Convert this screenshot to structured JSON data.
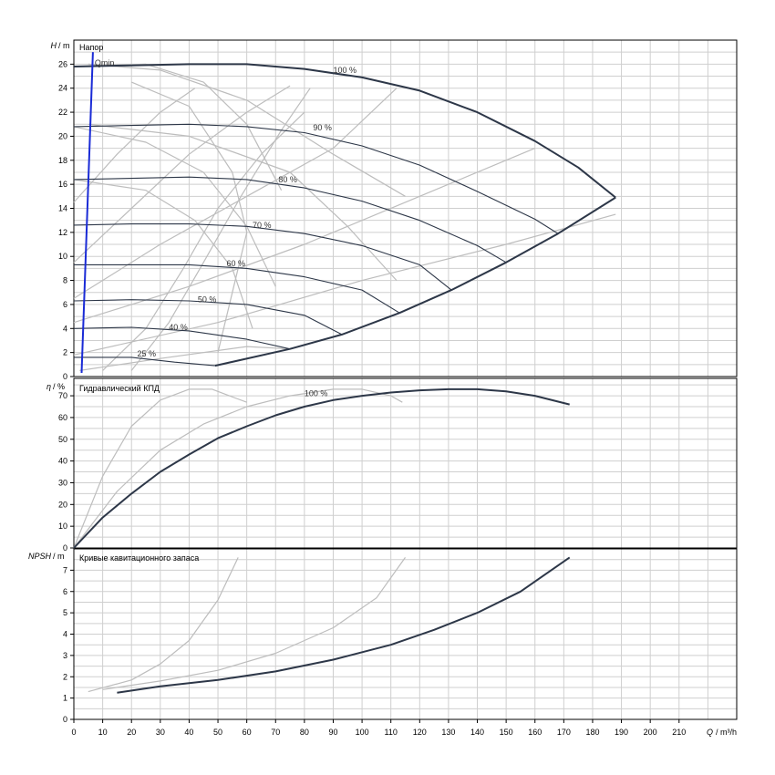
{
  "chart_data": [
    {
      "type": "line",
      "panel": "head",
      "title": "Напор",
      "ylabel_symbol": "H",
      "ylabel_unit": "/ m",
      "xlim": [
        0,
        230
      ],
      "ylim": [
        0,
        28
      ],
      "y_ticks": [
        0,
        2,
        4,
        6,
        8,
        10,
        12,
        14,
        16,
        18,
        20,
        22,
        24,
        26
      ],
      "colors": {
        "main": "#2d3748",
        "iso": "#2d3748",
        "grey": "#bdbdbd",
        "qmin": "#1a2bd6"
      },
      "qmin": {
        "label": "Qmin",
        "points": [
          [
            2.7,
            0.3
          ],
          [
            6.6,
            27
          ]
        ]
      },
      "speed_curves": [
        {
          "name": "100 %",
          "label_at": [
            90,
            25.5
          ],
          "points": [
            [
              0,
              25.8
            ],
            [
              20,
              25.9
            ],
            [
              40,
              26.0
            ],
            [
              60,
              26.0
            ],
            [
              80,
              25.6
            ],
            [
              100,
              24.9
            ],
            [
              120,
              23.8
            ],
            [
              140,
              22.0
            ],
            [
              160,
              19.6
            ],
            [
              175,
              17.4
            ],
            [
              188,
              14.9
            ]
          ]
        },
        {
          "name": "90 %",
          "label_at": [
            83,
            20.7
          ],
          "points": [
            [
              0,
              20.8
            ],
            [
              20,
              20.9
            ],
            [
              40,
              21.0
            ],
            [
              60,
              20.8
            ],
            [
              80,
              20.3
            ],
            [
              100,
              19.2
            ],
            [
              120,
              17.6
            ],
            [
              140,
              15.4
            ],
            [
              160,
              13.1
            ],
            [
              168,
              11.9
            ]
          ]
        },
        {
          "name": "80 %",
          "label_at": [
            71,
            16.4
          ],
          "points": [
            [
              0,
              16.4
            ],
            [
              20,
              16.5
            ],
            [
              40,
              16.6
            ],
            [
              60,
              16.4
            ],
            [
              80,
              15.7
            ],
            [
              100,
              14.6
            ],
            [
              120,
              13.0
            ],
            [
              140,
              10.9
            ],
            [
              150,
              9.5
            ]
          ]
        },
        {
          "name": "70 %",
          "label_at": [
            62,
            12.6
          ],
          "points": [
            [
              0,
              12.6
            ],
            [
              20,
              12.7
            ],
            [
              40,
              12.7
            ],
            [
              60,
              12.5
            ],
            [
              80,
              11.9
            ],
            [
              100,
              10.9
            ],
            [
              120,
              9.3
            ],
            [
              131,
              7.2
            ]
          ]
        },
        {
          "name": "60 %",
          "label_at": [
            53,
            9.4
          ],
          "points": [
            [
              0,
              9.3
            ],
            [
              20,
              9.3
            ],
            [
              40,
              9.3
            ],
            [
              60,
              9.0
            ],
            [
              80,
              8.3
            ],
            [
              100,
              7.2
            ],
            [
              113,
              5.3
            ]
          ]
        },
        {
          "name": "50 %",
          "label_at": [
            43,
            6.4
          ],
          "points": [
            [
              0,
              6.3
            ],
            [
              20,
              6.4
            ],
            [
              40,
              6.3
            ],
            [
              60,
              6.0
            ],
            [
              80,
              5.1
            ],
            [
              93,
              3.5
            ]
          ]
        },
        {
          "name": "40 %",
          "label_at": [
            33,
            4.1
          ],
          "points": [
            [
              0,
              4.0
            ],
            [
              20,
              4.1
            ],
            [
              40,
              3.8
            ],
            [
              60,
              3.1
            ],
            [
              75,
              2.3
            ]
          ]
        },
        {
          "name": "25 %",
          "label_at": [
            22,
            1.9
          ],
          "points": [
            [
              0,
              1.6
            ],
            [
              20,
              1.6
            ],
            [
              35,
              1.2
            ],
            [
              49,
              0.9
            ]
          ]
        }
      ],
      "envelope": [
        [
          49,
          0.9
        ],
        [
          75,
          2.3
        ],
        [
          93,
          3.5
        ],
        [
          113,
          5.3
        ],
        [
          131,
          7.2
        ],
        [
          150,
          9.5
        ],
        [
          168,
          11.9
        ],
        [
          188,
          14.9
        ]
      ],
      "grey_curves": [
        [
          [
            0,
            14.5
          ],
          [
            15,
            18.5
          ],
          [
            30,
            22.0
          ],
          [
            42,
            24.0
          ]
        ],
        [
          [
            0,
            9.5
          ],
          [
            20,
            14.0
          ],
          [
            40,
            18.5
          ],
          [
            60,
            22.0
          ],
          [
            75,
            24.2
          ]
        ],
        [
          [
            0,
            6.5
          ],
          [
            30,
            11.0
          ],
          [
            60,
            15.0
          ],
          [
            90,
            19.0
          ],
          [
            112,
            24.0
          ]
        ],
        [
          [
            0,
            4.5
          ],
          [
            40,
            7.5
          ],
          [
            80,
            11.0
          ],
          [
            120,
            15.0
          ],
          [
            160,
            19.0
          ]
        ],
        [
          [
            0,
            1.8
          ],
          [
            50,
            4.5
          ],
          [
            100,
            8.0
          ],
          [
            150,
            11.0
          ],
          [
            188,
            13.5
          ]
        ],
        [
          [
            2,
            0.5
          ],
          [
            30,
            1.5
          ],
          [
            60,
            2.5
          ],
          [
            75,
            2.3
          ]
        ],
        [
          [
            0,
            25.8
          ],
          [
            25,
            26.0
          ],
          [
            45,
            24.5
          ],
          [
            60,
            21.0
          ],
          [
            72,
            15.5
          ]
        ],
        [
          [
            0,
            20.8
          ],
          [
            25,
            19.5
          ],
          [
            45,
            17.0
          ],
          [
            60,
            12.5
          ],
          [
            70,
            7.5
          ]
        ],
        [
          [
            0,
            16.4
          ],
          [
            25,
            15.5
          ],
          [
            42,
            13.0
          ],
          [
            55,
            9.0
          ],
          [
            62,
            4.0
          ]
        ],
        [
          [
            5,
            26.0
          ],
          [
            30,
            25.5
          ],
          [
            60,
            23.0
          ],
          [
            90,
            18.5
          ],
          [
            115,
            15.0
          ]
        ],
        [
          [
            10,
            0.5
          ],
          [
            25,
            4.0
          ],
          [
            38,
            9.0
          ],
          [
            50,
            14.0
          ],
          [
            65,
            18.5
          ],
          [
            80,
            22.0
          ]
        ],
        [
          [
            20,
            0.5
          ],
          [
            33,
            4.5
          ],
          [
            45,
            9.5
          ],
          [
            58,
            15.0
          ],
          [
            72,
            20.5
          ],
          [
            82,
            24.0
          ]
        ],
        [
          [
            5,
            21.0
          ],
          [
            40,
            20.0
          ],
          [
            75,
            17.0
          ],
          [
            95,
            12.5
          ],
          [
            112,
            8.0
          ]
        ],
        [
          [
            20,
            24.5
          ],
          [
            40,
            22.5
          ],
          [
            55,
            17.0
          ],
          [
            60,
            12.0
          ],
          [
            55,
            7.0
          ],
          [
            50,
            2.0
          ]
        ]
      ]
    },
    {
      "type": "line",
      "panel": "efficiency",
      "title": "Гидравлический КПД",
      "ylabel_symbol": "η",
      "ylabel_unit": "/ %",
      "xlim": [
        0,
        230
      ],
      "ylim": [
        0,
        78
      ],
      "y_ticks": [
        0,
        10,
        20,
        30,
        40,
        50,
        60,
        70
      ],
      "curve_label": {
        "text": "100 %",
        "at": [
          80,
          71
        ]
      },
      "series": [
        {
          "name": "main",
          "points": [
            [
              0,
              0
            ],
            [
              10,
              14
            ],
            [
              20,
              25
            ],
            [
              30,
              35
            ],
            [
              40,
              43
            ],
            [
              50,
              50.5
            ],
            [
              60,
              56
            ],
            [
              70,
              61
            ],
            [
              80,
              65
            ],
            [
              90,
              68
            ],
            [
              100,
              70
            ],
            [
              110,
              71.5
            ],
            [
              120,
              72.5
            ],
            [
              130,
              73
            ],
            [
              140,
              73
            ],
            [
              150,
              72
            ],
            [
              160,
              70
            ],
            [
              172,
              66
            ]
          ]
        }
      ],
      "grey_curves": [
        [
          [
            0,
            0
          ],
          [
            10,
            33
          ],
          [
            20,
            56
          ],
          [
            30,
            68
          ],
          [
            40,
            73
          ],
          [
            48,
            73
          ],
          [
            56,
            69
          ],
          [
            60,
            67
          ]
        ],
        [
          [
            0,
            0
          ],
          [
            15,
            26
          ],
          [
            30,
            45
          ],
          [
            45,
            57
          ],
          [
            60,
            65
          ],
          [
            75,
            70
          ],
          [
            90,
            73
          ],
          [
            100,
            73
          ],
          [
            110,
            70
          ],
          [
            114,
            67
          ]
        ]
      ]
    },
    {
      "type": "line",
      "panel": "npsh",
      "title": "Кривые кавитационного запаса",
      "ylabel_symbol": "NPSH",
      "ylabel_unit": "/ m",
      "xlabel_symbol": "Q",
      "xlabel_unit": "/ m³/h",
      "xlim": [
        0,
        230
      ],
      "ylim": [
        0,
        8
      ],
      "x_ticks": [
        0,
        10,
        20,
        30,
        40,
        50,
        60,
        70,
        80,
        90,
        100,
        110,
        120,
        130,
        140,
        150,
        160,
        170,
        180,
        190,
        200,
        210
      ],
      "y_ticks": [
        0,
        1,
        2,
        3,
        4,
        5,
        6,
        7
      ],
      "series": [
        {
          "name": "main",
          "points": [
            [
              15,
              1.25
            ],
            [
              30,
              1.55
            ],
            [
              50,
              1.85
            ],
            [
              70,
              2.25
            ],
            [
              90,
              2.8
            ],
            [
              110,
              3.5
            ],
            [
              125,
              4.2
            ],
            [
              140,
              5.0
            ],
            [
              155,
              6.0
            ],
            [
              172,
              7.6
            ]
          ]
        }
      ],
      "grey_curves": [
        [
          [
            5,
            1.3
          ],
          [
            20,
            1.85
          ],
          [
            30,
            2.6
          ],
          [
            40,
            3.7
          ],
          [
            50,
            5.6
          ],
          [
            57,
            7.6
          ]
        ],
        [
          [
            10,
            1.4
          ],
          [
            30,
            1.8
          ],
          [
            50,
            2.3
          ],
          [
            70,
            3.1
          ],
          [
            90,
            4.3
          ],
          [
            105,
            5.7
          ],
          [
            115,
            7.6
          ]
        ]
      ]
    }
  ]
}
